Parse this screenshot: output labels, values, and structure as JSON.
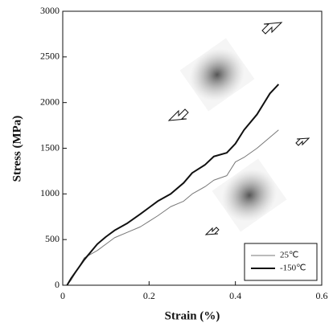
{
  "chart_data": {
    "type": "line",
    "x_label": "Strain (%)",
    "y_label": "Stress (MPa)",
    "xlim": [
      0,
      0.6
    ],
    "xticks": [
      0,
      0.2,
      0.4,
      0.6
    ],
    "ylim": [
      0,
      3000
    ],
    "yticks": [
      0,
      500,
      1000,
      1500,
      2000,
      2500,
      3000
    ],
    "grid": false,
    "legend": "lower right",
    "series": [
      {
        "name": "25℃",
        "color": "#777777",
        "width": 1,
        "x": [
          0.01,
          0.02,
          0.05,
          0.08,
          0.1,
          0.12,
          0.15,
          0.18,
          0.2,
          0.22,
          0.25,
          0.28,
          0.3,
          0.33,
          0.35,
          0.38,
          0.4,
          0.42,
          0.45,
          0.48,
          0.5
        ],
        "values": [
          0,
          60,
          300,
          380,
          450,
          520,
          580,
          640,
          700,
          760,
          860,
          920,
          1000,
          1080,
          1150,
          1200,
          1350,
          1400,
          1500,
          1620,
          1700
        ]
      },
      {
        "name": "-150℃",
        "color": "#111111",
        "width": 2,
        "x": [
          0.01,
          0.02,
          0.05,
          0.08,
          0.1,
          0.12,
          0.15,
          0.18,
          0.2,
          0.22,
          0.25,
          0.28,
          0.3,
          0.33,
          0.35,
          0.38,
          0.4,
          0.42,
          0.45,
          0.48,
          0.5
        ],
        "values": [
          0,
          80,
          280,
          450,
          530,
          600,
          680,
          780,
          850,
          920,
          1000,
          1120,
          1230,
          1320,
          1410,
          1450,
          1550,
          1700,
          1870,
          2100,
          2200
        ]
      }
    ]
  }
}
